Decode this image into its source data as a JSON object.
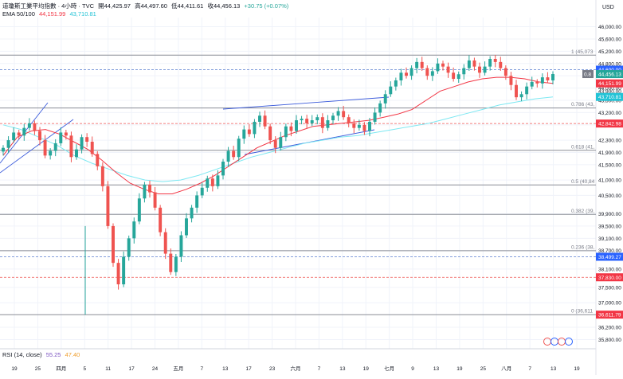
{
  "header": {
    "title": "道瓊斯工業平均指數 · 4小時 · TVC",
    "open_label": "開",
    "open": "44,425.97",
    "high_label": "高",
    "high": "44,497.60",
    "low_label": "低",
    "low": "44,411.61",
    "close_label": "收",
    "close": "44,456.13",
    "change": "+30.75 (+0.07%)"
  },
  "ema": {
    "label": "EMA 50/100",
    "v50": "44,151.99",
    "v100": "43,710.81"
  },
  "rsi": {
    "label": "RSI (14, close)",
    "v1": "55.25",
    "v2": "47.40"
  },
  "currency": "USD",
  "colors": {
    "up": "#26a69a",
    "down": "#ef5350",
    "ema50": "#f23645",
    "ema100": "#7ee8f2",
    "channel": "#3b5bdb",
    "fib": "#787b86"
  },
  "chart_data": {
    "type": "candlestick",
    "yaxis_ticks": [
      "46,000.00",
      "45,600.00",
      "45,200.00",
      "44,800.00",
      "44,400.00",
      "44,000.00",
      "43,600.00",
      "43,200.00",
      "42,800.00",
      "42,300.00",
      "41,900.00",
      "41,500.00",
      "41,000.00",
      "40,500.00",
      "39,900.00",
      "39,500.00",
      "39,100.00",
      "38,700.00",
      "38,100.00",
      "37,500.00",
      "37,000.00",
      "36,200.00",
      "35,800.00"
    ],
    "ylim": [
      35500,
      46300
    ],
    "xaxis_ticks": [
      "19",
      "25",
      "四月",
      "5",
      "11",
      "17",
      "24",
      "五月",
      "7",
      "13",
      "17",
      "23",
      "六月",
      "7",
      "13",
      "19",
      "七月",
      "9",
      "13",
      "19",
      "25",
      "八月",
      "7",
      "13",
      "19"
    ],
    "fib_levels": [
      {
        "label": "1 (45,073",
        "price": 45073
      },
      {
        "label": "0.786 (43,",
        "price": 43350
      },
      {
        "label": "0.618 (41,",
        "price": 41970
      },
      {
        "label": "0.5 (40,84",
        "price": 40840
      },
      {
        "label": "0.382 (39,",
        "price": 39880
      },
      {
        "label": "0.236 (38,",
        "price": 38695
      },
      {
        "label": "0 (36,611",
        "price": 36611
      }
    ],
    "price_labels": [
      {
        "text": "44,600.00",
        "price": 44600,
        "color": "#2962ff"
      },
      {
        "text": "44,456.13",
        "price": 44456,
        "color": "#26a69a"
      },
      {
        "text": "44,151.99",
        "price": 44152,
        "color": "#f23645"
      },
      {
        "text": "43,900.00",
        "price": 43900,
        "color": ""
      },
      {
        "text": "43,710.81",
        "price": 43711,
        "color": "#22c3d6"
      },
      {
        "text": "42,842.98",
        "price": 42843,
        "color": "#f23645"
      },
      {
        "text": "38,499.27",
        "price": 38499,
        "color": "#2962ff"
      },
      {
        "text": "37,830.00",
        "price": 37830,
        "color": "#f23645"
      },
      {
        "text": "36,611.79",
        "price": 36612,
        "color": "#f23645"
      }
    ],
    "crosshair_label": "0.8",
    "close_series": [
      42050,
      42300,
      42550,
      42450,
      42700,
      42850,
      42600,
      42300,
      41800,
      41950,
      42200,
      42550,
      42450,
      41750,
      42000,
      42400,
      42250,
      41850,
      41450,
      40800,
      39500,
      38300,
      37600,
      38500,
      39100,
      39650,
      40400,
      40850,
      40600,
      40100,
      39300,
      38600,
      38000,
      38500,
      39200,
      39750,
      40100,
      40500,
      40750,
      41050,
      40800,
      41150,
      41600,
      41950,
      41750,
      42350,
      42650,
      42500,
      42900,
      43100,
      42750,
      42300,
      42050,
      42400,
      42750,
      42600,
      42950,
      43000,
      42850,
      42950,
      43050,
      42700,
      42950,
      43100,
      43250,
      43050,
      42850,
      42700,
      42800,
      42600,
      42900,
      43200,
      43500,
      43800,
      44050,
      44250,
      44500,
      44400,
      44650,
      44850,
      44650,
      44400,
      44550,
      44800,
      44700,
      44500,
      44300,
      44450,
      44650,
      44900,
      44700,
      44500,
      44700,
      44950,
      44850,
      44650,
      44400,
      44100,
      43700,
      43800,
      44050,
      44200,
      44150,
      44350,
      44250,
      44456
    ],
    "ema50_series": [
      41800,
      42400,
      42600,
      42650,
      42500,
      42250,
      42000,
      41650,
      41250,
      40900,
      40700,
      40550,
      40550,
      40700,
      40900,
      41150,
      41450,
      41750,
      42050,
      42250,
      42450,
      42600,
      42750,
      42800,
      42850,
      42900,
      42950,
      43050,
      43150,
      43300,
      43600,
      43900,
      44050,
      44200,
      44300,
      44350,
      44350,
      44300,
      44200,
      44152
    ],
    "ema100_series": [
      42800,
      42650,
      42400,
      42150,
      41800,
      41550,
      41350,
      41150,
      41000,
      40950,
      41000,
      41150,
      41350,
      41550,
      41750,
      41900,
      42050,
      42200,
      42300,
      42400,
      42450,
      42550,
      42650,
      42750,
      42850,
      43000,
      43150,
      43300,
      43450,
      43550,
      43650,
      43711
    ]
  }
}
